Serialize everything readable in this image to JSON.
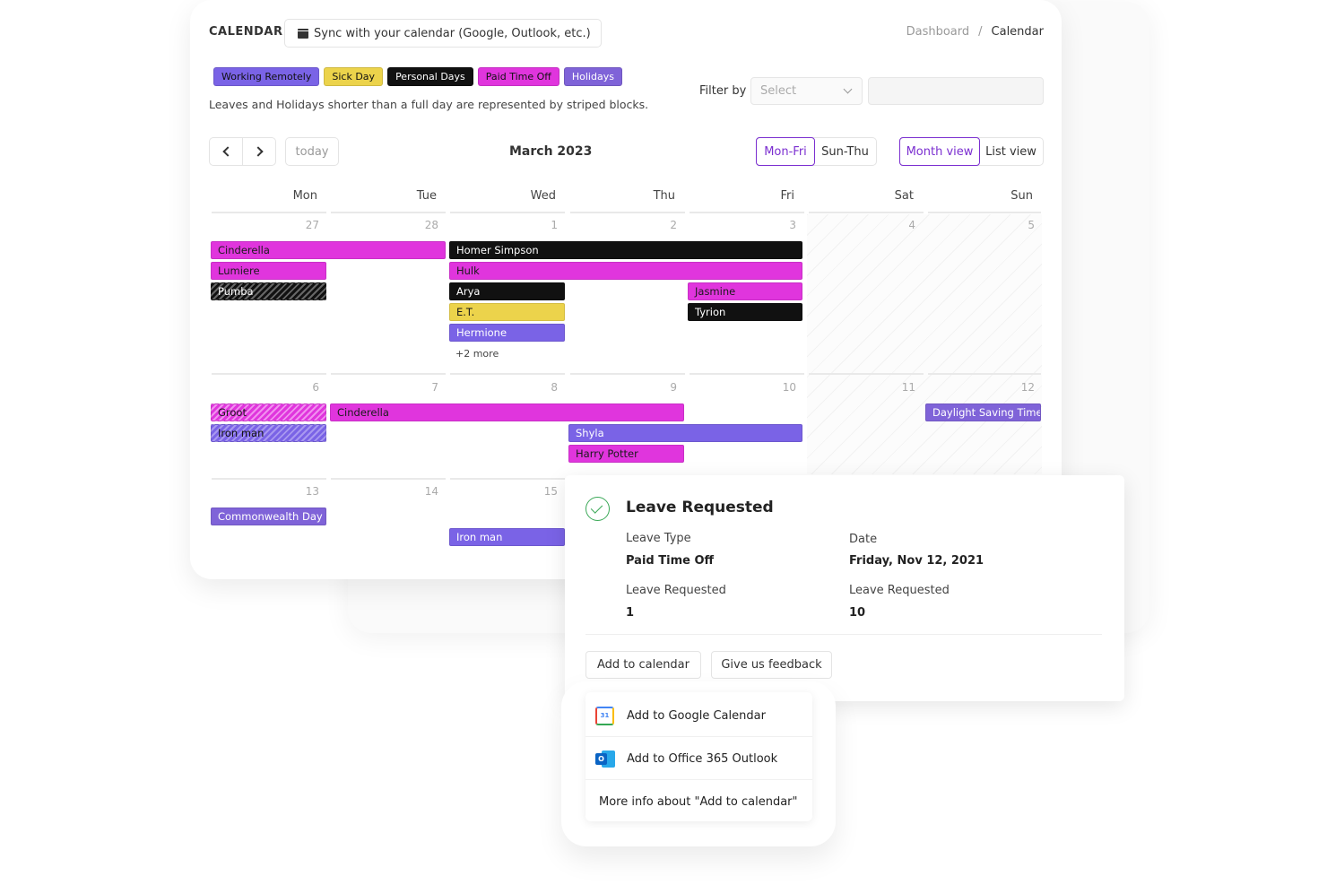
{
  "header": {
    "title": "CALENDAR",
    "sync_label": "Sync with your calendar (Google, Outlook, etc.)",
    "breadcrumb": {
      "parent": "Dashboard",
      "separator": "/",
      "current": "Calendar"
    }
  },
  "legend": [
    {
      "label": "Working Remotely",
      "color": "#7a63e6"
    },
    {
      "label": "Sick Day",
      "color": "#ecd34b"
    },
    {
      "label": "Personal Days",
      "color": "#111111"
    },
    {
      "label": "Paid Time Off",
      "color": "#e035dd"
    },
    {
      "label": "Holidays",
      "color": "#7f63d8"
    }
  ],
  "note": "Leaves and Holidays shorter than a full day are represented by striped blocks.",
  "filter": {
    "label": "Filter by",
    "placeholder": "Select"
  },
  "toolbar": {
    "today": "today",
    "month_title": "March 2023",
    "week_options": [
      "Mon-Fri",
      "Sun-Thu"
    ],
    "view_options": [
      "Month view",
      "List view"
    ]
  },
  "days_of_week": [
    "Mon",
    "Tue",
    "Wed",
    "Thu",
    "Fri",
    "Sat",
    "Sun"
  ],
  "weeks": [
    {
      "days": [
        "27",
        "28",
        "1",
        "2",
        "3",
        "4",
        "5"
      ]
    },
    {
      "days": [
        "6",
        "7",
        "8",
        "9",
        "10",
        "11",
        "12"
      ]
    },
    {
      "days": [
        "13",
        "14",
        "15",
        "",
        "",
        "",
        ""
      ]
    }
  ],
  "events": [
    {
      "name": "Cinderella",
      "type": "magenta"
    },
    {
      "name": "Lumiere",
      "type": "magenta"
    },
    {
      "name": "Pumba",
      "type": "stripe-black"
    },
    {
      "name": "Homer Simpson",
      "type": "black"
    },
    {
      "name": "Hulk",
      "type": "magenta"
    },
    {
      "name": "Arya",
      "type": "black"
    },
    {
      "name": "E.T.",
      "type": "yellow"
    },
    {
      "name": "Hermione",
      "type": "purple"
    },
    {
      "name": "Jasmine",
      "type": "magenta"
    },
    {
      "name": "Tyrion",
      "type": "black"
    },
    {
      "name": "Groot",
      "type": "stripe-magenta"
    },
    {
      "name": "Iron man",
      "type": "stripe-purple"
    },
    {
      "name": "Cinderella",
      "type": "magenta"
    },
    {
      "name": "Shyla",
      "type": "purple"
    },
    {
      "name": "Harry Potter",
      "type": "magenta"
    },
    {
      "name": "Daylight Saving Time s",
      "type": "violet"
    },
    {
      "name": "Commonwealth Day (C",
      "type": "violet"
    },
    {
      "name": "Iron man",
      "type": "purple"
    }
  ],
  "more_link": "+2 more",
  "leave_card": {
    "title": "Leave Requested",
    "fields": [
      {
        "label": "Leave Type",
        "value": "Paid Time Off"
      },
      {
        "label": "Date",
        "value": "Friday, Nov 12, 2021"
      },
      {
        "label": "Leave Requested",
        "value": "1"
      },
      {
        "label": "Leave Requested",
        "value": "10"
      }
    ],
    "buttons": [
      "Add to calendar",
      "Give us feedback"
    ]
  },
  "add_menu": {
    "google_icon_text": "31",
    "outlook_icon_text": "O",
    "items": [
      "Add to Google Calendar",
      "Add to Office 365 Outlook",
      "More info about \"Add to calendar\""
    ]
  },
  "colors": {
    "accent": "#7b2fd0",
    "success": "#3aa857"
  }
}
